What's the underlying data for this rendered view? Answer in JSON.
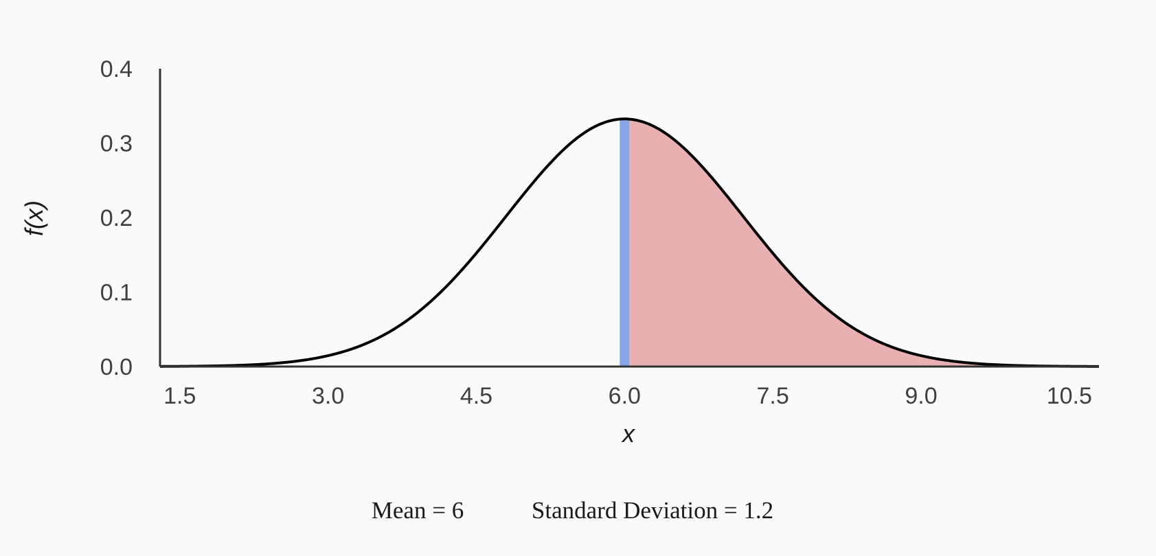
{
  "chart_data": {
    "type": "area",
    "distribution": "normal",
    "mean": 6,
    "sd": 1.2,
    "xlabel": "x",
    "ylabel": "f(x)",
    "xlim": [
      1.3,
      10.8
    ],
    "ylim": [
      0,
      0.4
    ],
    "x_ticks": [
      1.5,
      3.0,
      4.5,
      6.0,
      7.5,
      9.0,
      10.5
    ],
    "x_tick_labels": [
      "1.5",
      "3.0",
      "4.5",
      "6.0",
      "7.5",
      "9.0",
      "10.5"
    ],
    "y_ticks": [
      0.0,
      0.1,
      0.2,
      0.3,
      0.4
    ],
    "y_tick_labels": [
      "0.0",
      "0.1",
      "0.2",
      "0.3",
      "0.4"
    ],
    "shaded_region": {
      "from": 6,
      "to": 10.8
    },
    "marker_line_x": 6,
    "grid": false,
    "colors": {
      "curve": "#000000",
      "shade": "#e8b0b0",
      "marker": "#85a5e8",
      "axis": "#333333"
    }
  },
  "caption": {
    "mean_text": "Mean = 6",
    "sd_text": "Standard Deviation = 1.2"
  }
}
